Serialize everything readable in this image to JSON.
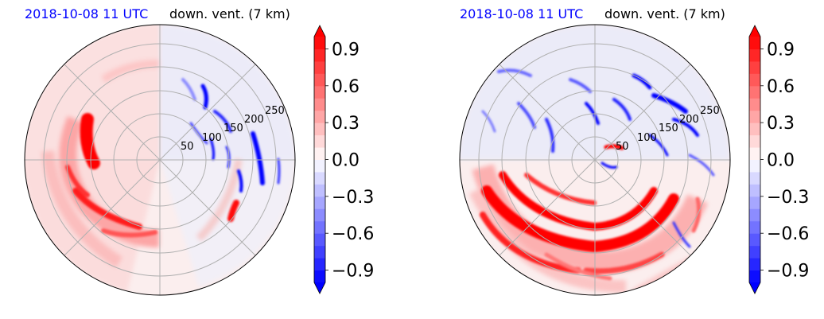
{
  "chart_data": [
    {
      "type": "heatmap",
      "date": "2018-10-08 11 UTC",
      "title": "down. vent. (7 km)",
      "radial_ticks": [
        "50",
        "100",
        "150",
        "200",
        "250"
      ],
      "radial_values": [
        50,
        100,
        150,
        200,
        250
      ],
      "rmax": 290,
      "colorbar": {
        "ticks": [
          "0.9",
          "0.6",
          "0.3",
          "0.0",
          "−0.3",
          "−0.6",
          "−0.9"
        ],
        "values": [
          0.9,
          0.6,
          0.3,
          0.0,
          -0.3,
          -0.6,
          -0.9
        ],
        "range": [
          -1.0,
          1.0
        ],
        "extend": "both",
        "colormap": "bwr",
        "low_color": "#0000ff",
        "high_color": "#ff0000"
      },
      "grid": true
    },
    {
      "type": "heatmap",
      "date": "2018-10-08 11 UTC",
      "title": "down. vent. (7 km)",
      "radial_ticks": [
        "50",
        "100",
        "150",
        "200",
        "250"
      ],
      "radial_values": [
        50,
        100,
        150,
        200,
        250
      ],
      "rmax": 290,
      "colorbar": {
        "ticks": [
          "0.9",
          "0.6",
          "0.3",
          "0.0",
          "−0.3",
          "−0.6",
          "−0.9"
        ],
        "values": [
          0.9,
          0.6,
          0.3,
          0.0,
          -0.3,
          -0.6,
          -0.9
        ],
        "range": [
          -1.0,
          1.0
        ],
        "extend": "both",
        "colormap": "bwr",
        "low_color": "#0000ff",
        "high_color": "#ff0000"
      },
      "grid": true
    }
  ]
}
